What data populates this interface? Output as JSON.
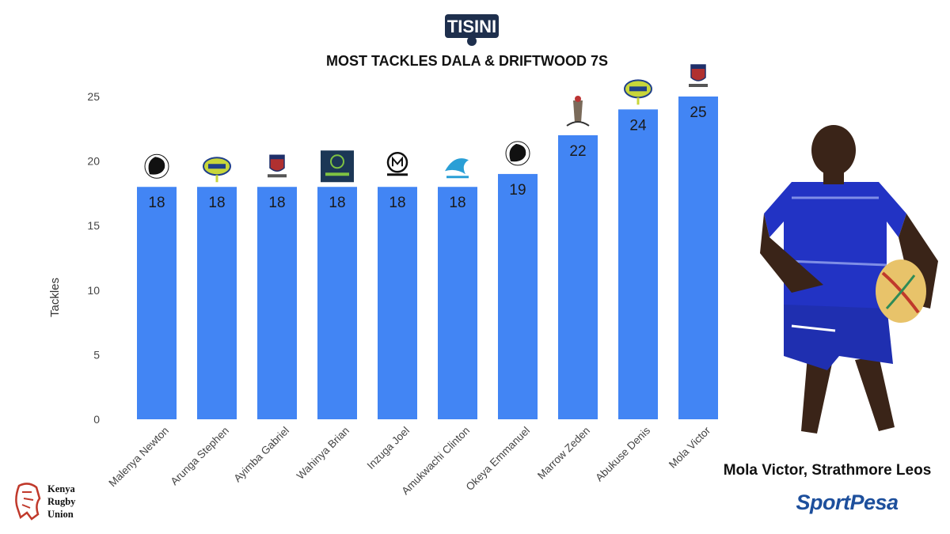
{
  "brand": {
    "logo_text": "TISINI"
  },
  "chart_data": {
    "type": "bar",
    "title": "MOST TACKLES  DALA &  DRIFTWOOD 7S",
    "xlabel": "",
    "ylabel": "Tackles",
    "ylim": [
      0,
      25
    ],
    "yticks": [
      0,
      5,
      10,
      15,
      20,
      25
    ],
    "grid": false,
    "bar_color": "#4285f4",
    "categories": [
      "Malenya Newton",
      "Arunga Stephen",
      "Ayimba Gabriel",
      "Wahinya Brian",
      "Inzuga Joel",
      "Amukwachi Clinton",
      "Okeya Emmanuel",
      "Marrow Zeden",
      "Abukuse Denis",
      "Mola Victor"
    ],
    "values": [
      18,
      18,
      18,
      18,
      18,
      18,
      19,
      22,
      24,
      25
    ],
    "team_logos": [
      "team-logo-icon",
      "oilers-logo-icon",
      "strathmore-logo-icon",
      "kcb-rugby-club-logo-icon",
      "mwamba-rugby-logo-icon",
      "falcons-logo-icon",
      "team-logo-icon",
      "harlequins-logo-icon",
      "oilers-logo-icon",
      "strathmore-logo-icon"
    ]
  },
  "player": {
    "caption": "Mola Victor, Strathmore Leos",
    "photo": "player-photo"
  },
  "sponsor": {
    "name": "SportPesa"
  },
  "union": {
    "line1": "Kenya",
    "line2": "Rugby",
    "line3": "Union"
  }
}
